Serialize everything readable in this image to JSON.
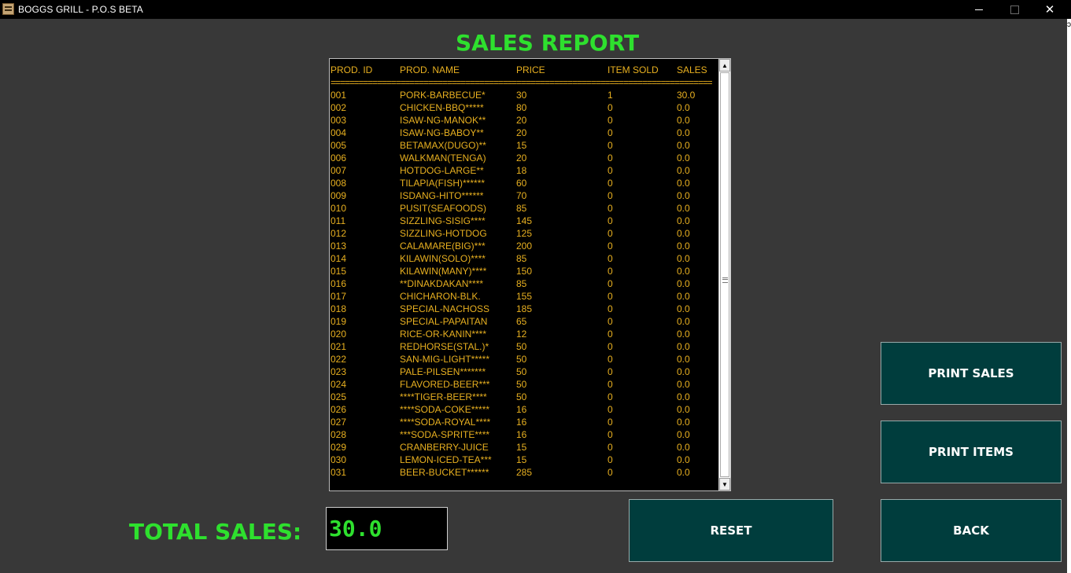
{
  "window": {
    "title": "BOGGS GRILL - P.O.S BETA",
    "minimize_glyph": "",
    "close_glyph": "✕",
    "edge_glyph": "ɔ"
  },
  "report": {
    "title": "SALES REPORT",
    "headers": {
      "id": "PROD. ID",
      "name": "PROD. NAME",
      "price": "PRICE",
      "sold": "ITEM SOLD",
      "sales": "SALES"
    },
    "separator": "==================================================================================",
    "rows": [
      {
        "id": "001",
        "name": "PORK-BARBECUE*",
        "price": "30",
        "sold": "1",
        "sales": "30.0"
      },
      {
        "id": "002",
        "name": "CHICKEN-BBQ*****",
        "price": "80",
        "sold": "0",
        "sales": "0.0"
      },
      {
        "id": "003",
        "name": "ISAW-NG-MANOK**",
        "price": "20",
        "sold": "0",
        "sales": "0.0"
      },
      {
        "id": "004",
        "name": "ISAW-NG-BABOY**",
        "price": "20",
        "sold": "0",
        "sales": "0.0"
      },
      {
        "id": "005",
        "name": "BETAMAX(DUGO)**",
        "price": "15",
        "sold": "0",
        "sales": "0.0"
      },
      {
        "id": "006",
        "name": "WALKMAN(TENGA)",
        "price": "20",
        "sold": "0",
        "sales": "0.0"
      },
      {
        "id": "007",
        "name": "HOTDOG-LARGE**",
        "price": "18",
        "sold": "0",
        "sales": "0.0"
      },
      {
        "id": "008",
        "name": "TILAPIA(FISH)******",
        "price": "60",
        "sold": "0",
        "sales": "0.0"
      },
      {
        "id": "009",
        "name": "ISDANG-HITO******",
        "price": "70",
        "sold": "0",
        "sales": "0.0"
      },
      {
        "id": "010",
        "name": "PUSIT(SEAFOODS)",
        "price": "85",
        "sold": "0",
        "sales": "0.0"
      },
      {
        "id": "011",
        "name": "SIZZLING-SISIG****",
        "price": "145",
        "sold": "0",
        "sales": "0.0"
      },
      {
        "id": "012",
        "name": "SIZZLING-HOTDOG",
        "price": "125",
        "sold": "0",
        "sales": "0.0"
      },
      {
        "id": "013",
        "name": "CALAMARE(BIG)***",
        "price": "200",
        "sold": "0",
        "sales": "0.0"
      },
      {
        "id": "014",
        "name": "KILAWIN(SOLO)****",
        "price": "85",
        "sold": "0",
        "sales": "0.0"
      },
      {
        "id": "015",
        "name": "KILAWIN(MANY)****",
        "price": "150",
        "sold": "0",
        "sales": "0.0"
      },
      {
        "id": "016",
        "name": "**DINAKDAKAN****",
        "price": "85",
        "sold": "0",
        "sales": "0.0"
      },
      {
        "id": "017",
        "name": "CHICHARON-BLK.",
        "price": "155",
        "sold": "0",
        "sales": "0.0"
      },
      {
        "id": "018",
        "name": "SPECIAL-NACHOSS",
        "price": "185",
        "sold": "0",
        "sales": "0.0"
      },
      {
        "id": "019",
        "name": "SPECIAL-PAPAITAN",
        "price": "65",
        "sold": "0",
        "sales": "0.0"
      },
      {
        "id": "020",
        "name": "RICE-OR-KANIN****",
        "price": "12",
        "sold": "0",
        "sales": "0.0"
      },
      {
        "id": "021",
        "name": "REDHORSE(STAL.)*",
        "price": "50",
        "sold": "0",
        "sales": "0.0"
      },
      {
        "id": "022",
        "name": "SAN-MIG-LIGHT*****",
        "price": "50",
        "sold": "0",
        "sales": "0.0"
      },
      {
        "id": "023",
        "name": "PALE-PILSEN*******",
        "price": "50",
        "sold": "0",
        "sales": "0.0"
      },
      {
        "id": "024",
        "name": "FLAVORED-BEER***",
        "price": "50",
        "sold": "0",
        "sales": "0.0"
      },
      {
        "id": "025",
        "name": "****TIGER-BEER****",
        "price": "50",
        "sold": "0",
        "sales": "0.0"
      },
      {
        "id": "026",
        "name": "****SODA-COKE*****",
        "price": "16",
        "sold": "0",
        "sales": "0.0"
      },
      {
        "id": "027",
        "name": "****SODA-ROYAL****",
        "price": "16",
        "sold": "0",
        "sales": "0.0"
      },
      {
        "id": "028",
        "name": "***SODA-SPRITE****",
        "price": "16",
        "sold": "0",
        "sales": "0.0"
      },
      {
        "id": "029",
        "name": "CRANBERRY-JUICE",
        "price": "15",
        "sold": "0",
        "sales": "0.0"
      },
      {
        "id": "030",
        "name": "LEMON-ICED-TEA***",
        "price": "15",
        "sold": "0",
        "sales": "0.0"
      },
      {
        "id": "031",
        "name": "BEER-BUCKET******",
        "price": "285",
        "sold": "0",
        "sales": "0.0"
      }
    ]
  },
  "total": {
    "label": "TOTAL SALES:",
    "value": "30.0"
  },
  "buttons": {
    "print_sales": "PRINT SALES",
    "print_items": "PRINT ITEMS",
    "reset": "RESET",
    "back": "BACK"
  },
  "icons": {
    "app": "grill-app-icon",
    "minimize": "minimize-icon",
    "maximize": "maximize-icon",
    "close": "close-icon",
    "scroll_up": "chevron-up-icon",
    "scroll_down": "chevron-down-icon"
  },
  "colors": {
    "background": "#383838",
    "report_text": "#e8b020",
    "headline_green": "#2ee02e",
    "button_bg": "#003d3d"
  }
}
